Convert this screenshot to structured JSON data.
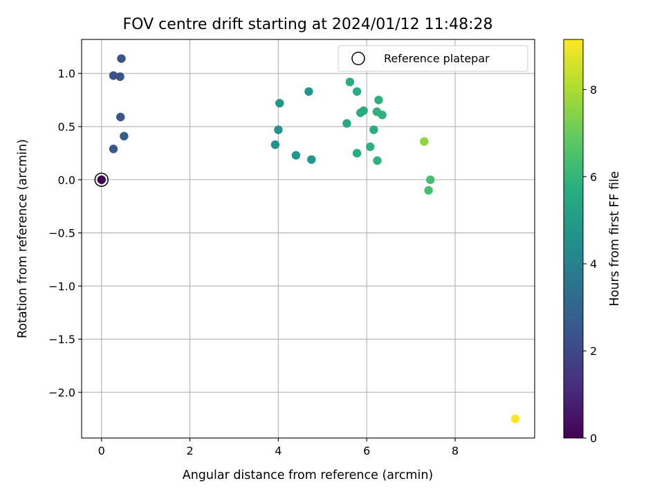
{
  "chart_data": {
    "type": "scatter",
    "title": "FOV centre drift starting at 2024/01/12 11:48:28",
    "xlabel": "Angular distance from reference (arcmin)",
    "ylabel": "Rotation from reference (arcmin)",
    "xlim": [
      -0.45,
      9.8
    ],
    "ylim": [
      -2.43,
      1.32
    ],
    "xticks": [
      0,
      2,
      4,
      6,
      8
    ],
    "xtick_labels": [
      "0",
      "2",
      "4",
      "6",
      "8"
    ],
    "yticks": [
      1.0,
      0.5,
      0.0,
      -0.5,
      -1.0,
      -1.5,
      -2.0
    ],
    "ytick_labels": [
      "1.0",
      "0.5",
      "0.0",
      "−0.5",
      "−1.0",
      "−1.5",
      "−2.0"
    ],
    "grid": true,
    "legend": {
      "position": "top-right",
      "entries": [
        "Reference platepar"
      ]
    },
    "reference_point": {
      "x": 0,
      "y": 0
    },
    "colorbar": {
      "label": "Hours from first FF file",
      "colormap": "viridis",
      "range": [
        0,
        9.15
      ],
      "ticks": [
        0,
        2,
        4,
        6,
        8
      ],
      "tick_labels": [
        "0",
        "2",
        "4",
        "6",
        "8"
      ]
    },
    "points": [
      {
        "x": 0.0,
        "y": 0.0,
        "hours": 0.0
      },
      {
        "x": 0.27,
        "y": 0.98,
        "hours": 2.3
      },
      {
        "x": 0.42,
        "y": 0.97,
        "hours": 2.4
      },
      {
        "x": 0.45,
        "y": 1.14,
        "hours": 2.4
      },
      {
        "x": 0.43,
        "y": 0.59,
        "hours": 2.5
      },
      {
        "x": 0.51,
        "y": 0.41,
        "hours": 2.6
      },
      {
        "x": 0.27,
        "y": 0.29,
        "hours": 2.5
      },
      {
        "x": 4.03,
        "y": 0.72,
        "hours": 4.8
      },
      {
        "x": 4.69,
        "y": 0.83,
        "hours": 4.8
      },
      {
        "x": 4.0,
        "y": 0.47,
        "hours": 4.7
      },
      {
        "x": 3.93,
        "y": 0.33,
        "hours": 4.7
      },
      {
        "x": 4.4,
        "y": 0.23,
        "hours": 4.8
      },
      {
        "x": 4.75,
        "y": 0.19,
        "hours": 4.9
      },
      {
        "x": 5.62,
        "y": 0.92,
        "hours": 5.6
      },
      {
        "x": 5.78,
        "y": 0.83,
        "hours": 5.6
      },
      {
        "x": 5.93,
        "y": 0.65,
        "hours": 5.7
      },
      {
        "x": 5.86,
        "y": 0.63,
        "hours": 5.6
      },
      {
        "x": 5.55,
        "y": 0.53,
        "hours": 5.5
      },
      {
        "x": 6.27,
        "y": 0.75,
        "hours": 5.8
      },
      {
        "x": 6.23,
        "y": 0.64,
        "hours": 5.8
      },
      {
        "x": 6.35,
        "y": 0.61,
        "hours": 5.8
      },
      {
        "x": 6.16,
        "y": 0.47,
        "hours": 5.7
      },
      {
        "x": 5.78,
        "y": 0.25,
        "hours": 5.6
      },
      {
        "x": 6.08,
        "y": 0.31,
        "hours": 5.8
      },
      {
        "x": 6.24,
        "y": 0.18,
        "hours": 5.9
      },
      {
        "x": 7.3,
        "y": 0.36,
        "hours": 7.6
      },
      {
        "x": 7.44,
        "y": 0.0,
        "hours": 6.4
      },
      {
        "x": 7.4,
        "y": -0.1,
        "hours": 6.4
      },
      {
        "x": 9.36,
        "y": -2.25,
        "hours": 9.1
      }
    ]
  }
}
